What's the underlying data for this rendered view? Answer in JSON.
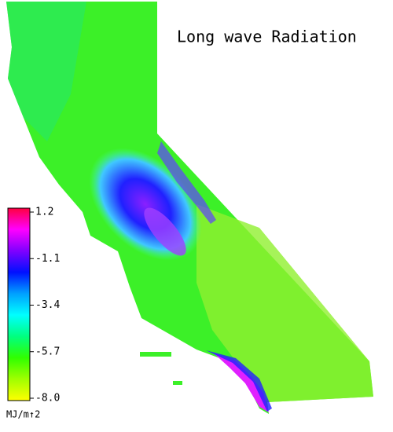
{
  "title": "Long wave Radiation",
  "colorbar": {
    "lim": [
      -8,
      1.2
    ],
    "ticks": [
      1.2,
      -1.1,
      -3.4,
      -5.7,
      {
        "value": -8,
        "label": "-8.0"
      }
    ],
    "colors": [
      "#ff0040",
      "#ff00ff",
      "#8000ff",
      "#0010ff",
      "#00a0ff",
      "#00ffff",
      "#00ff80",
      "#30ff00",
      "#a0ff00",
      "#ffff00"
    ],
    "unit": "MJ/m↑2"
  }
}
